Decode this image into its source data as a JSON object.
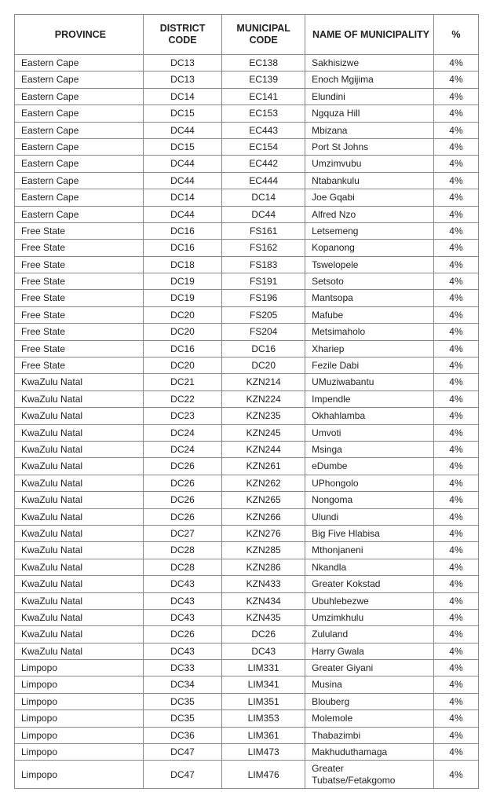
{
  "table": {
    "columns": [
      "PROVINCE",
      "DISTRICT CODE",
      "MUNICIPAL CODE",
      "NAME OF MUNICIPALITY",
      "%"
    ],
    "rows": [
      [
        "Eastern Cape",
        "DC13",
        "EC138",
        "Sakhisizwe",
        "4%"
      ],
      [
        "Eastern Cape",
        "DC13",
        "EC139",
        "Enoch Mgijima",
        "4%"
      ],
      [
        "Eastern Cape",
        "DC14",
        "EC141",
        "Elundini",
        "4%"
      ],
      [
        "Eastern Cape",
        "DC15",
        "EC153",
        "Ngquza Hill",
        "4%"
      ],
      [
        "Eastern Cape",
        "DC44",
        "EC443",
        "Mbizana",
        "4%"
      ],
      [
        "Eastern Cape",
        "DC15",
        "EC154",
        "Port St Johns",
        "4%"
      ],
      [
        "Eastern Cape",
        "DC44",
        "EC442",
        "Umzimvubu",
        "4%"
      ],
      [
        "Eastern Cape",
        "DC44",
        "EC444",
        "Ntabankulu",
        "4%"
      ],
      [
        "Eastern Cape",
        "DC14",
        "DC14",
        "Joe Gqabi",
        "4%"
      ],
      [
        "Eastern Cape",
        "DC44",
        "DC44",
        "Alfred Nzo",
        "4%"
      ],
      [
        "Free State",
        "DC16",
        "FS161",
        "Letsemeng",
        "4%"
      ],
      [
        "Free State",
        "DC16",
        "FS162",
        "Kopanong",
        "4%"
      ],
      [
        "Free State",
        "DC18",
        "FS183",
        "Tswelopele",
        "4%"
      ],
      [
        "Free State",
        "DC19",
        "FS191",
        "Setsoto",
        "4%"
      ],
      [
        "Free State",
        "DC19",
        "FS196",
        "Mantsopa",
        "4%"
      ],
      [
        "Free State",
        "DC20",
        "FS205",
        "Mafube",
        "4%"
      ],
      [
        "Free State",
        "DC20",
        "FS204",
        "Metsimaholo",
        "4%"
      ],
      [
        "Free State",
        "DC16",
        "DC16",
        "Xhariep",
        "4%"
      ],
      [
        "Free State",
        "DC20",
        "DC20",
        "Fezile Dabi",
        "4%"
      ],
      [
        "KwaZulu Natal",
        "DC21",
        "KZN214",
        "UMuziwabantu",
        "4%"
      ],
      [
        "KwaZulu Natal",
        "DC22",
        "KZN224",
        "Impendle",
        "4%"
      ],
      [
        "KwaZulu Natal",
        "DC23",
        "KZN235",
        "Okhahlamba",
        "4%"
      ],
      [
        "KwaZulu Natal",
        "DC24",
        "KZN245",
        "Umvoti",
        "4%"
      ],
      [
        "KwaZulu Natal",
        "DC24",
        "KZN244",
        "Msinga",
        "4%"
      ],
      [
        "KwaZulu Natal",
        "DC26",
        "KZN261",
        "eDumbe",
        "4%"
      ],
      [
        "KwaZulu Natal",
        "DC26",
        "KZN262",
        "UPhongolo",
        "4%"
      ],
      [
        "KwaZulu Natal",
        "DC26",
        "KZN265",
        "Nongoma",
        "4%"
      ],
      [
        "KwaZulu Natal",
        "DC26",
        "KZN266",
        "Ulundi",
        "4%"
      ],
      [
        "KwaZulu Natal",
        "DC27",
        "KZN276",
        "Big Five Hlabisa",
        "4%"
      ],
      [
        "KwaZulu Natal",
        "DC28",
        "KZN285",
        "Mthonjaneni",
        "4%"
      ],
      [
        "KwaZulu Natal",
        "DC28",
        "KZN286",
        "Nkandla",
        "4%"
      ],
      [
        "KwaZulu Natal",
        "DC43",
        "KZN433",
        "Greater Kokstad",
        "4%"
      ],
      [
        "KwaZulu Natal",
        "DC43",
        "KZN434",
        "Ubuhlebezwe",
        "4%"
      ],
      [
        "KwaZulu Natal",
        "DC43",
        "KZN435",
        "Umzimkhulu",
        "4%"
      ],
      [
        "KwaZulu Natal",
        "DC26",
        "DC26",
        "Zululand",
        "4%"
      ],
      [
        "KwaZulu Natal",
        "DC43",
        "DC43",
        "Harry Gwala",
        "4%"
      ],
      [
        "Limpopo",
        "DC33",
        "LIM331",
        "Greater Giyani",
        "4%"
      ],
      [
        "Limpopo",
        "DC34",
        "LIM341",
        "Musina",
        "4%"
      ],
      [
        "Limpopo",
        "DC35",
        "LIM351",
        "Blouberg",
        "4%"
      ],
      [
        "Limpopo",
        "DC35",
        "LIM353",
        "Molemole",
        "4%"
      ],
      [
        "Limpopo",
        "DC36",
        "LIM361",
        "Thabazimbi",
        "4%"
      ],
      [
        "Limpopo",
        "DC47",
        "LIM473",
        "Makhuduthamaga",
        "4%"
      ],
      [
        "Limpopo",
        "DC47",
        "LIM476",
        "Greater Tubatse/Fetakgomo",
        "4%"
      ]
    ]
  }
}
